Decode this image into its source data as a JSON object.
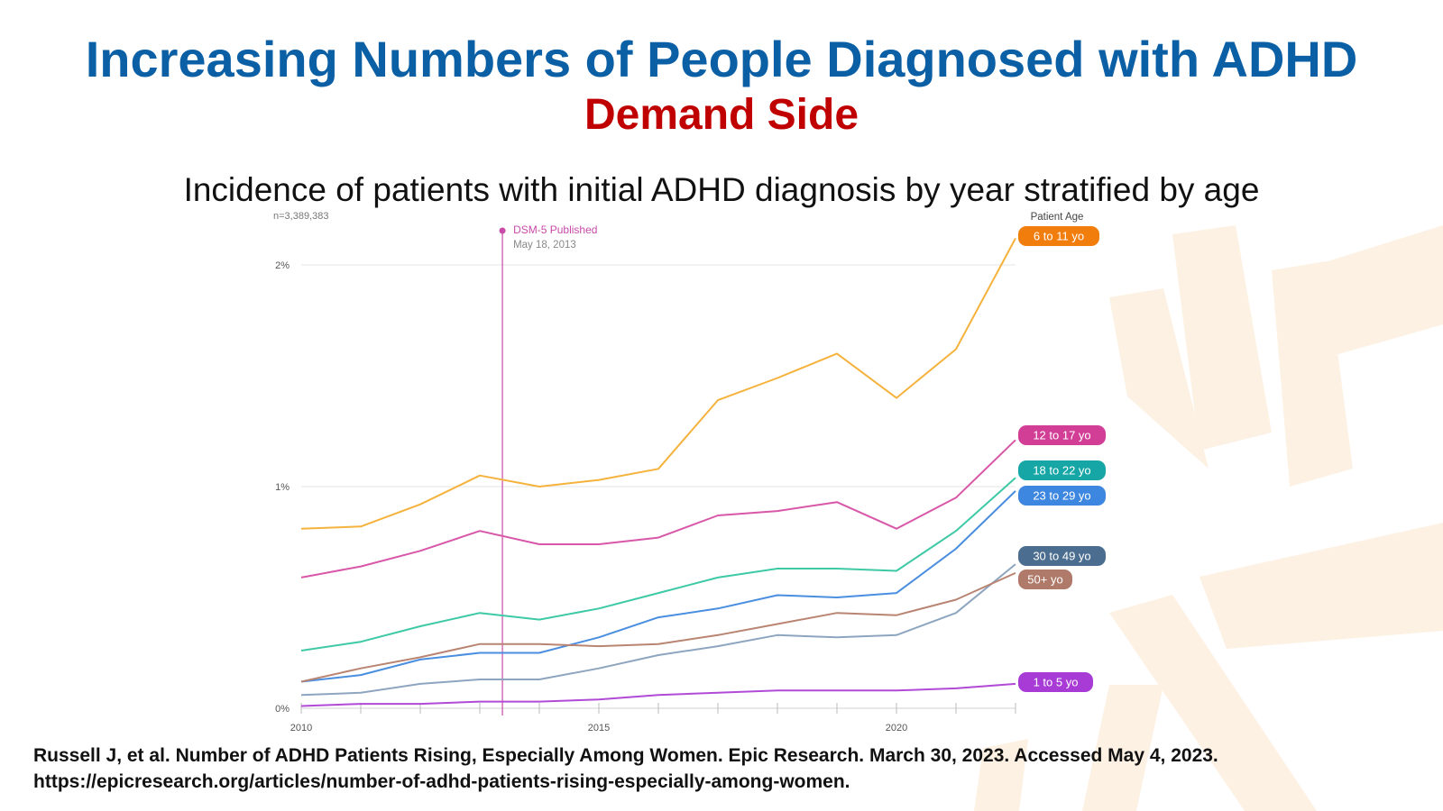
{
  "slide": {
    "title": "Increasing Numbers of People Diagnosed with ADHD",
    "subtitle": "Demand Side",
    "chart_heading": "Incidence of patients with initial ADHD diagnosis by year stratified by age",
    "citation_line1": "Russell J, et al. Number of ADHD Patients Rising, Especially Among Women. Epic Research. March 30, 2023. Accessed May 4, 2023.",
    "citation_line2": "https://epicresearch.org/articles/number-of-adhd-patients-rising-especially-among-women."
  },
  "colors": {
    "title": "#0b5fa5",
    "subtitle": "#c00000",
    "decoration": "#fdf1e3"
  },
  "chart_data": {
    "type": "line",
    "sample_size_label": "n=3,389,383",
    "legend_title": "Patient Age",
    "legend_position": "right",
    "x_ticks": [
      2010,
      2015,
      2020
    ],
    "y_ticks": [
      {
        "value": 0,
        "label": "0%"
      },
      {
        "value": 1,
        "label": "1%"
      },
      {
        "value": 2,
        "label": "2%"
      }
    ],
    "xlim": [
      2010,
      2022
    ],
    "ylim": [
      0,
      2.2
    ],
    "grid": true,
    "annotation": {
      "label": "DSM-5 Published",
      "date": "May 18, 2013",
      "x": 2013.38,
      "color": "#c94aa8"
    },
    "x": [
      2010,
      2011,
      2012,
      2013,
      2014,
      2015,
      2016,
      2017,
      2018,
      2019,
      2020,
      2021,
      2022
    ],
    "series": [
      {
        "name": "6 to 11 yo",
        "color": "#f5b23c",
        "label_color": "#f07d0c",
        "values": [
          0.81,
          0.82,
          0.92,
          1.05,
          1.0,
          1.03,
          1.08,
          1.39,
          1.49,
          1.6,
          1.4,
          1.62,
          2.12
        ]
      },
      {
        "name": "12 to 17 yo",
        "color": "#d857a8",
        "label_color": "#d23d96",
        "values": [
          0.59,
          0.64,
          0.71,
          0.8,
          0.74,
          0.74,
          0.77,
          0.87,
          0.89,
          0.93,
          0.81,
          0.95,
          1.21
        ]
      },
      {
        "name": "18 to 22 yo",
        "color": "#3ec9a6",
        "label_color": "#17a6a6",
        "values": [
          0.26,
          0.3,
          0.37,
          0.43,
          0.4,
          0.45,
          0.52,
          0.59,
          0.63,
          0.63,
          0.62,
          0.8,
          1.04
        ]
      },
      {
        "name": "23 to 29 yo",
        "color": "#4a8ee0",
        "label_color": "#3d87e0",
        "values": [
          0.12,
          0.15,
          0.22,
          0.25,
          0.25,
          0.32,
          0.41,
          0.45,
          0.51,
          0.5,
          0.52,
          0.72,
          0.98
        ]
      },
      {
        "name": "30 to 49 yo",
        "color": "#8ea5bf",
        "label_color": "#4b6d8f",
        "values": [
          0.06,
          0.07,
          0.11,
          0.13,
          0.13,
          0.18,
          0.24,
          0.28,
          0.33,
          0.32,
          0.33,
          0.43,
          0.65
        ]
      },
      {
        "name": "50+ yo",
        "color": "#b98472",
        "label_color": "#b07a6a",
        "values": [
          0.12,
          0.18,
          0.23,
          0.29,
          0.29,
          0.28,
          0.29,
          0.33,
          0.38,
          0.43,
          0.42,
          0.49,
          0.61
        ]
      },
      {
        "name": "1 to 5 yo",
        "color": "#b14ad6",
        "label_color": "#a83bd6",
        "values": [
          0.01,
          0.02,
          0.02,
          0.03,
          0.03,
          0.04,
          0.06,
          0.07,
          0.08,
          0.08,
          0.08,
          0.09,
          0.11
        ]
      }
    ]
  }
}
